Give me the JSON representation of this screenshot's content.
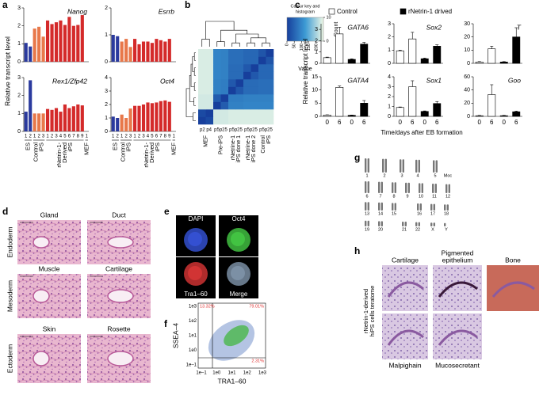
{
  "panel_labels": [
    "a",
    "b",
    "c",
    "d",
    "e",
    "f",
    "g",
    "h"
  ],
  "panel_a": {
    "y_label": "Relative transcript level",
    "bar_colors": [
      "#2b3a9e",
      "#2b3a9e",
      "#e8784a",
      "#e8784a",
      "#e8784a",
      "#d42a2a",
      "#d42a2a",
      "#d42a2a",
      "#d42a2a",
      "#d42a2a",
      "#d42a2a",
      "#d42a2a",
      "#d42a2a",
      "#d42a2a",
      "#d42a2a"
    ],
    "groups": [
      {
        "lines": [
          "ES"
        ],
        "color": "#2b3a9e"
      },
      {
        "lines": [
          "Control",
          "iPS"
        ],
        "color": "#e8784a"
      },
      {
        "lines": [
          "rNetrin-1-",
          "Derived",
          "iPS"
        ],
        "color": "#d42a2a"
      },
      {
        "lines": [
          "MEF"
        ],
        "color": "#000000"
      }
    ]
  },
  "panel_c": {
    "y_label": "Relative transcript level",
    "x_label": "Time/days after EB formation",
    "legend": [
      {
        "name": "Control",
        "color": "#ffffff"
      },
      {
        "name": "rNetrin-1 drived",
        "color": "#000000"
      }
    ]
  },
  "chart_data": [
    {
      "type": "bar",
      "title": "Nanog",
      "values": [
        1.05,
        0.85,
        1.85,
        1.95,
        1.4,
        2.3,
        2.1,
        2.2,
        2.3,
        2.05,
        2.5,
        2.0,
        2.05,
        2.6,
        0
      ],
      "ylim": [
        0,
        3
      ],
      "yticks": [
        0,
        1,
        2,
        3
      ]
    },
    {
      "type": "bar",
      "title": "Esrrb",
      "values": [
        1.0,
        0.95,
        0.75,
        0.85,
        0.55,
        0.85,
        0.65,
        0.75,
        0.75,
        0.7,
        0.85,
        0.8,
        0.75,
        0.85,
        0
      ],
      "ylim": [
        0,
        2
      ],
      "yticks": [
        0,
        1,
        2
      ]
    },
    {
      "type": "bar",
      "title": "Rex1/Zfp42",
      "categories": [
        "1",
        "2",
        "1",
        "2",
        "3",
        "1",
        "2",
        "3",
        "4",
        "5",
        "6",
        "7",
        "8",
        "9",
        "1"
      ],
      "values": [
        1.1,
        2.85,
        1.0,
        1.0,
        1.0,
        1.25,
        1.2,
        1.3,
        1.1,
        1.5,
        1.3,
        1.4,
        1.5,
        1.45,
        0
      ],
      "ylim": [
        0,
        3
      ],
      "yticks": [
        0,
        1,
        2,
        3
      ]
    },
    {
      "type": "bar",
      "title": "Oct4",
      "categories": [
        "1",
        "2",
        "1",
        "2",
        "3",
        "1",
        "2",
        "3",
        "4",
        "5",
        "6",
        "7",
        "8",
        "9",
        "1"
      ],
      "values": [
        1.1,
        1.0,
        1.25,
        1.0,
        1.7,
        1.9,
        1.9,
        2.0,
        2.15,
        2.1,
        2.15,
        2.25,
        2.3,
        2.2,
        0
      ],
      "ylim": [
        0,
        4
      ],
      "yticks": [
        0,
        1,
        2,
        3,
        4
      ]
    },
    {
      "type": "heatmap",
      "key_title": [
        "Colour key and",
        "histogram"
      ],
      "key_y_label": "Count",
      "key_x_label": "Value",
      "key_xlim": [
        0,
        250
      ],
      "key_xticks": [
        0,
        50,
        100,
        150,
        200
      ],
      "key_ylim": [
        0,
        10
      ],
      "key_yticks": [
        0,
        10
      ],
      "colors": [
        "#173f9c",
        "#3c9ad4",
        "#eef8e6"
      ],
      "groups": [
        [
          "MEF"
        ],
        [
          "Pre-iPS"
        ],
        [
          "rNetrine-1",
          "iPS done 1"
        ],
        [
          "rNetrine-1",
          "iPS done 2"
        ],
        [
          "Control",
          "iPS"
        ]
      ],
      "passages": [
        "p2 p4",
        "p5p25",
        "p5p25",
        "p5p25",
        "p5p25"
      ],
      "matrix": [
        [
          0,
          15,
          230,
          230,
          235,
          235,
          235,
          235,
          235,
          235
        ],
        [
          15,
          0,
          230,
          230,
          235,
          235,
          235,
          235,
          235,
          235
        ],
        [
          230,
          230,
          0,
          40,
          90,
          90,
          95,
          95,
          95,
          95
        ],
        [
          230,
          230,
          40,
          0,
          85,
          85,
          90,
          90,
          90,
          90
        ],
        [
          235,
          235,
          90,
          85,
          0,
          35,
          60,
          60,
          65,
          65
        ],
        [
          235,
          235,
          90,
          85,
          35,
          0,
          60,
          60,
          65,
          65
        ],
        [
          235,
          235,
          95,
          90,
          60,
          60,
          0,
          35,
          55,
          55
        ],
        [
          235,
          235,
          95,
          90,
          60,
          60,
          35,
          0,
          55,
          55
        ],
        [
          235,
          235,
          95,
          90,
          65,
          65,
          55,
          55,
          0,
          30
        ],
        [
          235,
          235,
          95,
          90,
          65,
          65,
          55,
          55,
          30,
          0
        ]
      ]
    },
    {
      "type": "bar",
      "title": "GATA6",
      "series": [
        {
          "values": [
            0.5,
            2.6
          ],
          "errors": [
            0.05,
            0.6
          ]
        },
        {
          "values": [
            0.35,
            1.7
          ],
          "errors": [
            0.05,
            0.15
          ]
        }
      ],
      "ylim": [
        0,
        3.5
      ],
      "yticks": [
        0,
        1,
        2,
        3
      ]
    },
    {
      "type": "bar",
      "title": "Sox2",
      "series": [
        {
          "values": [
            0.95,
            1.85
          ],
          "errors": [
            0.05,
            0.5
          ]
        },
        {
          "values": [
            0.35,
            1.3
          ],
          "errors": [
            0.05,
            0.1
          ]
        }
      ],
      "ylim": [
        0,
        3
      ],
      "yticks": [
        0,
        1,
        2,
        3
      ]
    },
    {
      "type": "bar",
      "title": "T",
      "series": [
        {
          "values": [
            1,
            11
          ],
          "errors": [
            0.3,
            2
          ]
        },
        {
          "values": [
            1,
            20
          ],
          "errors": [
            0.3,
            7
          ]
        }
      ],
      "ylim": [
        0,
        30
      ],
      "yticks": [
        0,
        10,
        20,
        30
      ]
    },
    {
      "type": "bar",
      "title": "GATA4",
      "categories": [
        "0",
        "6"
      ],
      "series": [
        {
          "values": [
            0.5,
            11
          ],
          "errors": [
            0.1,
            0.5
          ]
        },
        {
          "values": [
            0.4,
            5
          ],
          "errors": [
            0.1,
            1
          ]
        }
      ],
      "ylim": [
        0,
        15
      ],
      "yticks": [
        0,
        5,
        10,
        15
      ]
    },
    {
      "type": "bar",
      "title": "Sox1",
      "categories": [
        "0",
        "6"
      ],
      "series": [
        {
          "values": [
            0.9,
            3.0
          ],
          "errors": [
            0.05,
            0.6
          ]
        },
        {
          "values": [
            0.5,
            1.3
          ],
          "errors": [
            0.05,
            0.2
          ]
        }
      ],
      "ylim": [
        0,
        4
      ],
      "yticks": [
        0,
        1,
        2,
        3,
        4
      ]
    },
    {
      "type": "bar",
      "title": "Goo",
      "categories": [
        "0",
        "6"
      ],
      "series": [
        {
          "values": [
            1,
            33
          ],
          "errors": [
            0.5,
            15
          ]
        },
        {
          "values": [
            1,
            7
          ],
          "errors": [
            0.5,
            1
          ]
        }
      ],
      "ylim": [
        0,
        60
      ],
      "yticks": [
        0,
        20,
        40,
        60
      ]
    }
  ],
  "panel_d": {
    "row_labels": [
      "Endoderm",
      "Mesoderm",
      "Ectoderm"
    ],
    "tissues": [
      [
        "Gland",
        "Duct"
      ],
      [
        "Muscle",
        "Cartilage"
      ],
      [
        "Skin",
        "Rosette"
      ]
    ]
  },
  "panel_e": {
    "stains": [
      "DAPI",
      "Oct4",
      "Tra1–60",
      "Merge"
    ]
  },
  "panel_f": {
    "y_label": "SSEA–4",
    "x_label": "TRA1–60",
    "xticks": [
      "1e–1",
      "1e0",
      "1e1",
      "1e2",
      "1e3"
    ],
    "yticks": [
      "1e–1",
      "1e0",
      "1e1",
      "1e2",
      "1e3"
    ],
    "quadrants": [
      "13.32%",
      "79.01%",
      "2.31%"
    ]
  },
  "panel_g": {
    "chromosomes": [
      "1",
      "2",
      "3",
      "4",
      "5",
      "6",
      "7",
      "8",
      "9",
      "10",
      "11",
      "12",
      "13",
      "14",
      "15",
      "16",
      "17",
      "18",
      "19",
      "20",
      "21",
      "22",
      "X",
      "Y"
    ],
    "note": "Moc"
  },
  "panel_h": {
    "side_label": [
      "rNetrin-1-derived",
      "hiPS cells teratome"
    ],
    "tissues": [
      [
        "Cartilage"
      ],
      [
        "Pigmented",
        "epithelium"
      ],
      [
        "Bone"
      ],
      [
        "Malpighain"
      ],
      [
        "Mucosecretant"
      ]
    ]
  }
}
